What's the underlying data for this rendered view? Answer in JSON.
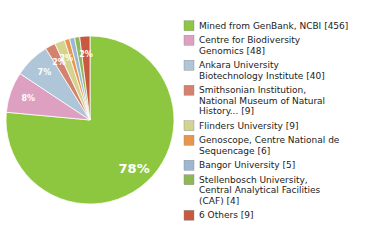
{
  "chart_data": {
    "type": "pie",
    "categories": [
      "Mined from GenBank, NCBI [456]",
      "Centre for Biodiversity\nGenomics [48]",
      "Ankara University\nBiotechnology Institute [40]",
      "Smithsonian Institution,\nNational Museum of Natural\nHistory... [9]",
      "Flinders University [9]",
      "Genoscope, Centre National de\nSequencage [6]",
      "Bangor University [5]",
      "Stellenbosch University,\nCentral Analytical Facilities\n(CAF)  [4]",
      "6 Others [9]"
    ],
    "values": [
      78,
      8,
      7,
      2,
      2,
      1,
      1,
      1,
      2
    ],
    "value_labels": [
      "78%",
      "8%",
      "7%",
      "2%",
      "2%",
      null,
      null,
      null,
      "2%"
    ],
    "colors": [
      "#8dc63f",
      "#dda0c0",
      "#aec6d8",
      "#d4826e",
      "#d4d490",
      "#e8964e",
      "#9ab8d4",
      "#8db858",
      "#c85840"
    ],
    "data_labels": true,
    "legend": "right"
  }
}
